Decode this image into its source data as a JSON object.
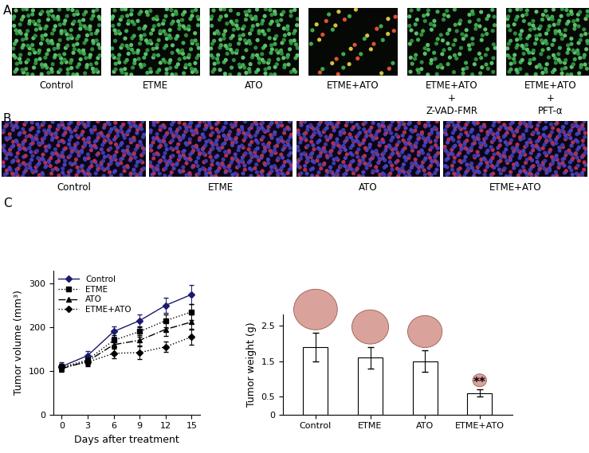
{
  "panels": {
    "A": {
      "label": "A",
      "images": [
        "Control",
        "ETME",
        "ATO",
        "ETME+ATO",
        "ETME+ATO\n+\nZ-VAD-FMR",
        "ETME+ATO\n+\nPFT-α"
      ]
    },
    "B": {
      "label": "B",
      "images": [
        "Control",
        "ETME",
        "ATO",
        "ETME+ATO"
      ]
    }
  },
  "chart_data": [
    {
      "panel": "C",
      "type": "line",
      "x_label": "Days after treatment",
      "y_label": "Tumor volume (mm³)",
      "x": [
        0,
        3,
        6,
        9,
        12,
        15
      ],
      "xlim": [
        -1,
        16
      ],
      "xticks": [
        0,
        3,
        6,
        9,
        12,
        15
      ],
      "ylim": [
        0,
        330
      ],
      "yticks": [
        0,
        100,
        200,
        300
      ],
      "legend": "upper left",
      "series": [
        {
          "name": "Control",
          "color": "#1a1a6e",
          "marker": "diamond",
          "line_style": "solid",
          "values": [
            110,
            135,
            190,
            215,
            250,
            275
          ],
          "errors": [
            10,
            10,
            12,
            15,
            18,
            22
          ]
        },
        {
          "name": "ETME",
          "color": "#000000",
          "marker": "square",
          "line_style": "dotted",
          "values": [
            108,
            125,
            170,
            190,
            215,
            235
          ],
          "errors": [
            8,
            10,
            12,
            12,
            15,
            18
          ]
        },
        {
          "name": "ATO",
          "color": "#000000",
          "marker": "triangle",
          "line_style": "dashdot",
          "values": [
            105,
            122,
            160,
            170,
            195,
            212
          ],
          "errors": [
            8,
            10,
            10,
            12,
            15,
            18
          ]
        },
        {
          "name": "ETME+ATO",
          "color": "#000000",
          "marker": "diamond",
          "line_style": "dotted",
          "values": [
            108,
            120,
            140,
            142,
            155,
            178
          ],
          "errors": [
            8,
            10,
            12,
            15,
            12,
            18
          ]
        }
      ]
    },
    {
      "type": "bar",
      "y_label": "Tumor weight (g)",
      "categories": [
        "Control",
        "ETME",
        "ATO",
        "ETME+ATO"
      ],
      "values": [
        1.9,
        1.6,
        1.5,
        0.6
      ],
      "errors": [
        0.4,
        0.3,
        0.3,
        0.1
      ],
      "color": "#ffffff",
      "ylim": [
        0,
        2.8
      ],
      "yticks": [
        0,
        0.5,
        1.5,
        2.5
      ],
      "annotations": [
        {
          "text": "**",
          "category": "ETME+ATO"
        }
      ]
    }
  ]
}
